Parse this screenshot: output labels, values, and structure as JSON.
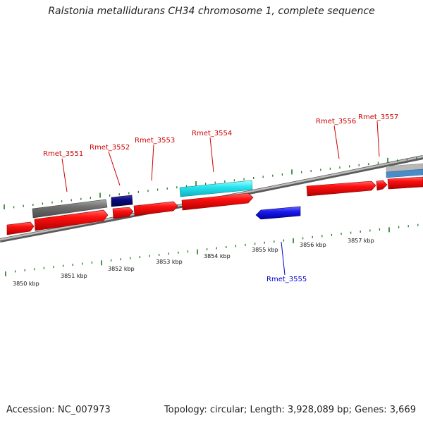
{
  "title": "Ralstonia metallidurans CH34 chromosome 1, complete sequence",
  "footer": {
    "accession": "Accession: NC_007973",
    "topology": "Topology: circular; Length: 3,928,089 bp; Genes: 3,669"
  },
  "colors": {
    "forward_gene": "#ee0000",
    "reverse_gene": "#1010dd",
    "label_forward": "#cc0000",
    "label_reverse": "#0000cc",
    "tick": "#1f7a1f",
    "backbone": "#888888",
    "gray_feature": "#6e6e6e",
    "navy_feature": "#0a0a80",
    "cyan_feature": "#22e0e8"
  },
  "scale_labels": [
    "3850 kbp",
    "3851 kbp",
    "3852 kbp",
    "3853 kbp",
    "3854 kbp",
    "3855 kbp",
    "3856 kbp",
    "3857 kbp"
  ],
  "gene_labels_top": [
    "Rmet_3551",
    "Rmet_3552",
    "Rmet_3553",
    "Rmet_3554",
    "Rmet_3556",
    "Rmet_3557"
  ],
  "gene_labels_bottom": [
    "Rmet_3555"
  ]
}
